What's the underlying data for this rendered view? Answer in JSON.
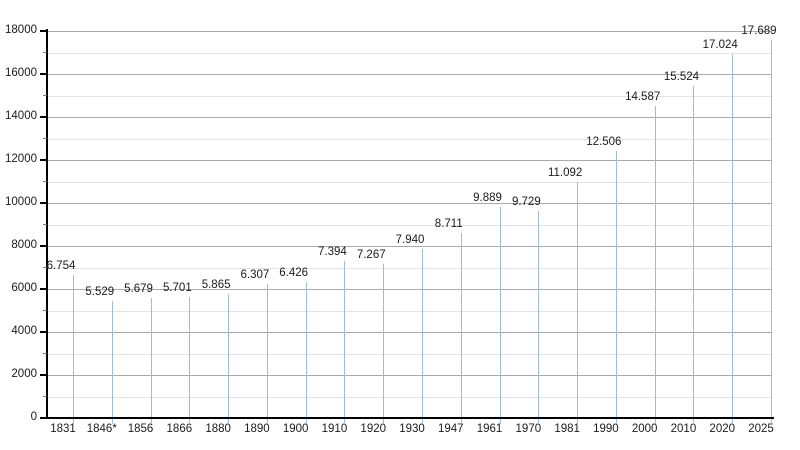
{
  "chart_data": {
    "type": "bar",
    "title": "",
    "xlabel": "",
    "ylabel": "",
    "categories": [
      "1831",
      "1846*",
      "1856",
      "1866",
      "1880",
      "1890",
      "1900",
      "1910",
      "1920",
      "1930",
      "1947",
      "1961",
      "1970",
      "1981",
      "1990",
      "2000",
      "2010",
      "2020",
      "2025"
    ],
    "values": [
      6754,
      5529,
      5679,
      5701,
      5865,
      6307,
      6426,
      7394,
      7267,
      7940,
      8711,
      9889,
      9729,
      11092,
      12506,
      14587,
      15524,
      17024,
      17689
    ],
    "value_labels": [
      "6.754",
      "5.529",
      "5.679",
      "5.701",
      "5.865",
      "6.307",
      "6.426",
      "7.394",
      "7.267",
      "7.940",
      "8.711",
      "9.889",
      "9.729",
      "11.092",
      "12.506",
      "14.587",
      "15.524",
      "17.024",
      "17.689"
    ],
    "ylim": [
      0,
      18000
    ],
    "y_major_step": 2000,
    "y_minor_step": 1000,
    "y_tick_labels": [
      "0",
      "2000",
      "4000",
      "6000",
      "8000",
      "10000",
      "12000",
      "14000",
      "16000",
      "18000"
    ],
    "grid": "horizontal major+minor",
    "legend": "none",
    "colors": {
      "bar": "#aecbe7",
      "bar_gradient_light": "#f0f6fb",
      "bar_edge": "#9cbcdc",
      "grid_major": "#aaaaaa",
      "grid_minor": "#e4e4e4",
      "axis": "#000000",
      "text": "#1b1b1b",
      "background": "#ffffff"
    }
  }
}
